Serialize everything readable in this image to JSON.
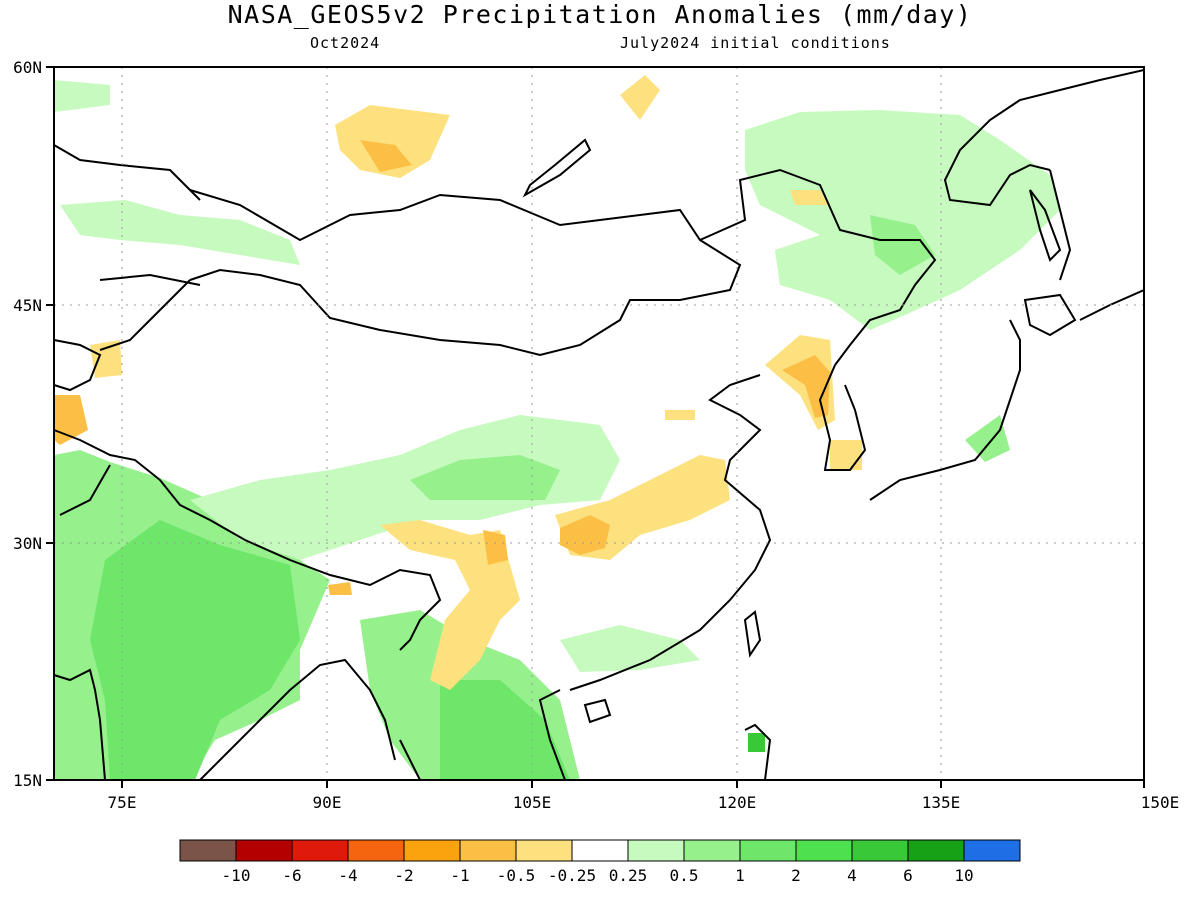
{
  "header": {
    "title": "NASA_GEOS5v2 Precipitation Anomalies (mm/day)",
    "subtitle_left": "Oct2024",
    "subtitle_right": "July2024 initial conditions"
  },
  "map": {
    "lon_range": [
      70,
      150
    ],
    "lat_range": [
      15,
      60
    ],
    "lon_ticks": [
      "75E",
      "90E",
      "105E",
      "120E",
      "135E",
      "150E"
    ],
    "lat_ticks": [
      "60N",
      "45N",
      "30N",
      "15N"
    ],
    "grid": "dotted"
  },
  "colorbar": {
    "colors": [
      "#7a5448",
      "#b40000",
      "#e01a0a",
      "#f5640f",
      "#fba20f",
      "#fbbf46",
      "#fde17f",
      "#ffffff",
      "#c6fabe",
      "#96f08c",
      "#6ee66a",
      "#4ee04e",
      "#38c838",
      "#17a117",
      "#1e6ee6"
    ],
    "labels": [
      "-10",
      "-6",
      "-4",
      "-2",
      "-1",
      "-0.5",
      "-0.25",
      "0.25",
      "0.5",
      "1",
      "2",
      "4",
      "6",
      "10"
    ]
  }
}
